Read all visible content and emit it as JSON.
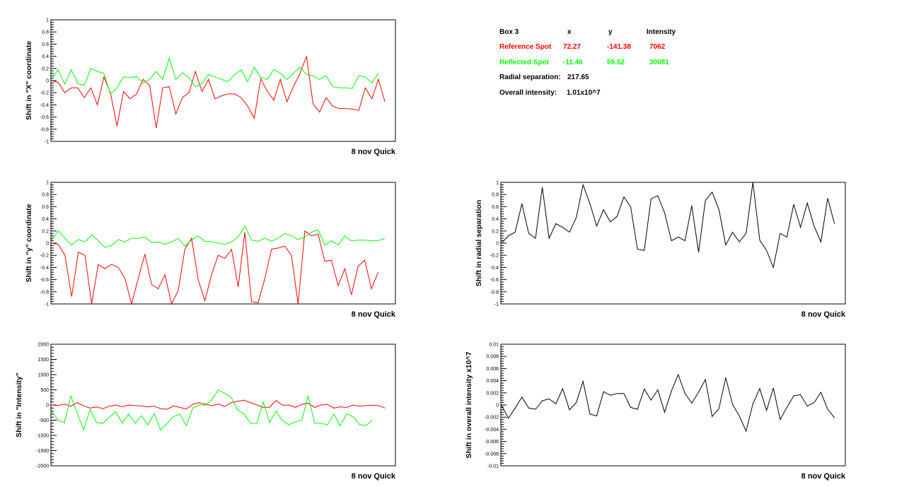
{
  "info_table": {
    "header": {
      "box": "Box 3",
      "x": "x",
      "y": "y",
      "intensity": "Intensity"
    },
    "reference": {
      "label": "Reference Spot",
      "x": "72.27",
      "y": "-141.38",
      "intensity": "7062",
      "color": "#ff0000"
    },
    "reflected": {
      "label": "Reflected Spot",
      "x": "-11.46",
      "y": "59.52",
      "intensity": "30081",
      "color": "#00ff00"
    },
    "radial": {
      "label": "Radial separation:",
      "value": "217.65"
    },
    "overall": {
      "label": "Overall intensity:",
      "value": "1.01x10^7"
    }
  },
  "chart_data": [
    {
      "id": "x-shift",
      "type": "line",
      "ylabel": "Shift in \"X\" coordinate",
      "xlabel": "8 nov Quick",
      "ylim": [
        -1,
        1
      ],
      "ticks": [
        "1",
        "0.8",
        "0.6",
        "0.4",
        "0.2",
        "0",
        "-0.2",
        "-0.4",
        "-0.6",
        "-0.8",
        "-1"
      ],
      "series": [
        {
          "color": "#ff0000",
          "values": [
            0.0,
            -0.03,
            -0.2,
            -0.12,
            -0.12,
            -0.28,
            -0.12,
            -0.4,
            0.06,
            -0.2,
            -0.75,
            -0.18,
            -0.3,
            -0.22,
            0.02,
            -0.08,
            -0.78,
            -0.12,
            -0.1,
            -0.55,
            -0.28,
            -0.2,
            0.15,
            -0.18,
            0.02,
            -0.3,
            -0.25,
            -0.22,
            -0.22,
            -0.28,
            -0.42,
            -0.62,
            0.03,
            -0.18,
            -0.32,
            0.02,
            -0.35,
            -0.1,
            0.12,
            0.4,
            -0.38,
            -0.52,
            -0.28,
            -0.42,
            -0.46,
            -0.46,
            -0.47,
            -0.49,
            -0.12,
            -0.3,
            0.02,
            -0.35
          ]
        },
        {
          "color": "#00ff00",
          "values": [
            0.02,
            0.18,
            -0.06,
            0.18,
            -0.05,
            -0.08,
            0.2,
            0.15,
            0.12,
            -0.22,
            -0.12,
            0.06,
            0.05,
            0.07,
            -0.04,
            0.02,
            0.15,
            0.02,
            0.37,
            0.02,
            0.13,
            0.05,
            -0.1,
            -0.05,
            0.1,
            0.06,
            0.02,
            -0.02,
            0.1,
            0.18,
            -0.02,
            0.22,
            0.05,
            0.02,
            0.18,
            0.12,
            0.02,
            0.12,
            0.22,
            0.1,
            0.08,
            0.02,
            0.08,
            -0.1,
            -0.12,
            -0.12,
            -0.13,
            0.08,
            0.06,
            -0.04,
            0.12
          ]
        }
      ]
    },
    {
      "id": "y-shift",
      "type": "line",
      "ylabel": "Shift in \"y\" coordinate",
      "xlabel": "8 nov Quick",
      "ylim": [
        -1,
        1
      ],
      "ticks": [
        "1",
        "0.8",
        "0.6",
        "0.4",
        "0.2",
        "0",
        "-0.2",
        "-0.4",
        "-0.6",
        "-0.8",
        "-1"
      ],
      "series": [
        {
          "color": "#ff0000",
          "values": [
            0.0,
            -0.02,
            -0.2,
            -0.88,
            -0.15,
            -0.2,
            -1.0,
            -0.35,
            -0.42,
            -0.35,
            -0.4,
            -0.58,
            -1.0,
            -0.58,
            -0.18,
            -0.68,
            -0.75,
            -0.52,
            -1.0,
            -0.78,
            -0.1,
            0.08,
            -0.6,
            -0.95,
            -0.52,
            -0.2,
            -0.25,
            -0.1,
            -0.72,
            0.18,
            -0.96,
            -0.98,
            -0.58,
            -0.1,
            -0.08,
            -0.05,
            -0.2,
            -1.0,
            0.2,
            0.12,
            0.15,
            -0.3,
            -0.28,
            -0.7,
            -0.42,
            -0.85,
            -0.38,
            -0.28,
            -0.75,
            -0.48
          ]
        },
        {
          "color": "#00ff00",
          "values": [
            0.05,
            0.2,
            0.08,
            -0.03,
            0.06,
            0.02,
            0.14,
            0.04,
            -0.07,
            -0.04,
            0.06,
            0.02,
            0.08,
            0.08,
            0.1,
            0.01,
            0.02,
            -0.02,
            0.02,
            0.08,
            -0.05,
            0.05,
            0.12,
            0.03,
            0.02,
            0.0,
            -0.02,
            0.02,
            0.1,
            0.28,
            0.05,
            0.03,
            0.08,
            0.03,
            0.08,
            0.16,
            0.12,
            0.06,
            0.1,
            0.18,
            0.22,
            -0.03,
            0.04,
            -0.03,
            0.12,
            0.04,
            0.05,
            0.05,
            0.04,
            0.04,
            0.08
          ]
        }
      ]
    },
    {
      "id": "intensity-shift",
      "type": "line",
      "ylabel": "Shift in \"Intensity\"",
      "xlabel": "8 nov Quick",
      "ylim": [
        -2000,
        2000
      ],
      "ticks": [
        "2000",
        "1500",
        "1000",
        "500",
        "0",
        "-500",
        "-1000",
        "-1500",
        "-2000"
      ],
      "series": [
        {
          "color": "#ff0000",
          "values": [
            0,
            -20,
            30,
            -40,
            80,
            -30,
            -100,
            -60,
            -120,
            -40,
            0,
            -60,
            0,
            -20,
            -30,
            -60,
            -40,
            -120,
            -140,
            -30,
            -80,
            -130,
            20,
            80,
            20,
            -20,
            30,
            -50,
            80,
            120,
            160,
            80,
            0,
            -80,
            -70,
            150,
            -10,
            0,
            -80,
            20,
            60,
            -80,
            0,
            20,
            -100,
            -60,
            -80,
            0,
            -40,
            -20,
            -10,
            -20,
            -100
          ]
        },
        {
          "color": "#00ff00",
          "values": [
            -200,
            -500,
            -580,
            300,
            -280,
            -820,
            -150,
            -580,
            -600,
            -400,
            -220,
            -600,
            -300,
            -600,
            -350,
            -650,
            -280,
            -820,
            -600,
            -380,
            -300,
            -680,
            -100,
            0,
            0,
            180,
            500,
            380,
            250,
            -150,
            -300,
            -600,
            -600,
            100,
            -580,
            -200,
            -520,
            -650,
            -550,
            -500,
            300,
            -600,
            -600,
            -650,
            -300,
            -680,
            -300,
            -380,
            -640,
            -680,
            -500
          ]
        }
      ]
    },
    {
      "id": "radial-shift",
      "type": "line",
      "ylabel": "Shift in radial separation",
      "xlabel": "8 nov Quick",
      "ylim": [
        -1,
        1
      ],
      "ticks": [
        "1",
        "0.8",
        "0.6",
        "0.4",
        "0.2",
        "0",
        "-0.2",
        "-0.4",
        "-0.6",
        "-0.8",
        "-1"
      ],
      "series": [
        {
          "color": "#000000",
          "values": [
            0.0,
            0.12,
            0.18,
            0.65,
            0.16,
            0.08,
            0.92,
            0.08,
            0.32,
            0.26,
            0.18,
            0.42,
            0.96,
            0.65,
            0.28,
            0.55,
            0.35,
            0.44,
            0.76,
            0.6,
            -0.1,
            -0.12,
            0.73,
            0.78,
            0.5,
            0.04,
            0.1,
            0.04,
            0.62,
            -0.15,
            0.7,
            0.84,
            0.55,
            -0.03,
            0.18,
            0.02,
            0.16,
            1.0,
            0.05,
            -0.12,
            -0.4,
            0.16,
            0.1,
            0.64,
            0.26,
            0.66,
            0.28,
            0.02,
            0.74,
            0.32
          ]
        }
      ]
    },
    {
      "id": "overall-intensity-shift",
      "type": "line",
      "ylabel": "Shift in overall intensity x10^7",
      "xlabel": "8 nov Quick",
      "ylim": [
        -0.01,
        0.01
      ],
      "ticks": [
        "0.01",
        "0.008",
        "0.006",
        "0.004",
        "0.002",
        "0",
        "-0.002",
        "-0.004",
        "-0.006",
        "-0.008",
        "-0.01"
      ],
      "series": [
        {
          "color": "#000000",
          "values": [
            0.0,
            -0.0022,
            -0.0005,
            0.0013,
            -0.0005,
            -0.0007,
            0.0007,
            0.001,
            0.0002,
            0.0027,
            -0.0008,
            0.0004,
            0.0039,
            -0.0015,
            -0.0018,
            0.0022,
            0.0016,
            0.0019,
            0.0019,
            -0.0004,
            -0.0007,
            0.0026,
            0.0008,
            0.0025,
            -0.0012,
            0.0023,
            0.005,
            0.0019,
            0.0003,
            0.0021,
            0.0042,
            -0.0019,
            -0.0006,
            0.0045,
            0.0001,
            -0.0018,
            -0.0043,
            0.0002,
            0.0027,
            -0.0009,
            0.0028,
            -0.0024,
            -0.0004,
            0.0015,
            0.0017,
            -0.0002,
            0.0004,
            0.0021,
            -0.0007,
            -0.0021
          ]
        }
      ]
    }
  ]
}
